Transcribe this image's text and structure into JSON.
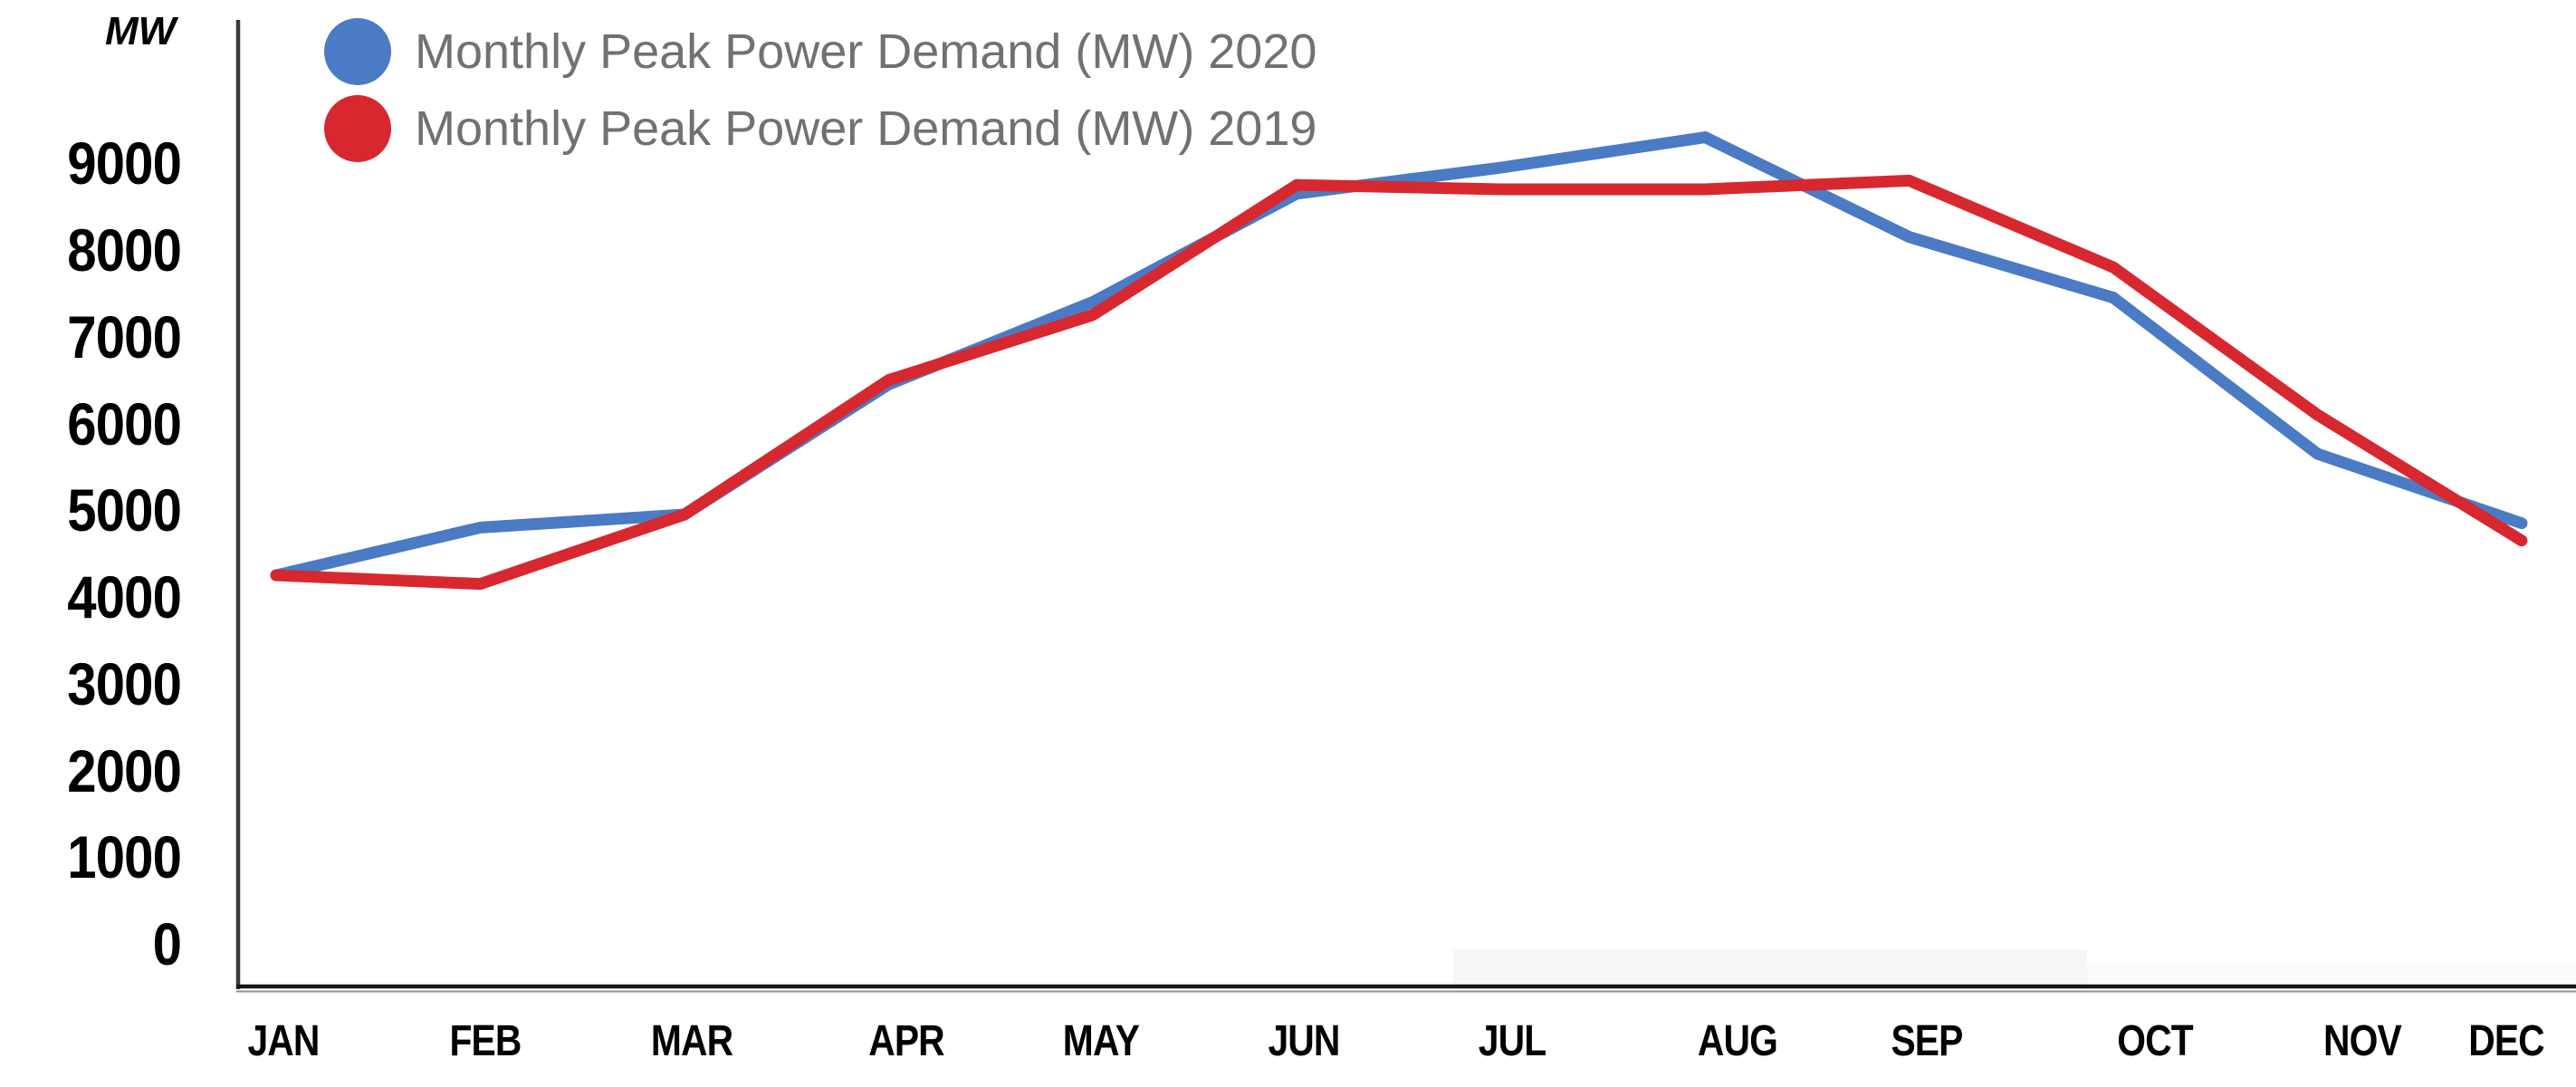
{
  "chart_data": {
    "type": "line",
    "title": "",
    "unit_label": "MW",
    "xlabel": "",
    "ylabel": "MW",
    "categories": [
      "JAN",
      "FEB",
      "MAR",
      "APR",
      "MAY",
      "JUN",
      "JUL",
      "AUG",
      "SEP",
      "OCT",
      "NOV",
      "DEC"
    ],
    "series": [
      {
        "name": "Monthly Peak Power Demand (MW) 2020",
        "color": "#4A7BC4",
        "values": [
          4250,
          4800,
          4950,
          6450,
          7400,
          8650,
          8950,
          9300,
          8150,
          7450,
          5650,
          4850
        ]
      },
      {
        "name": "Monthly Peak Power Demand (MW) 2019",
        "color": "#D7282F",
        "values": [
          4250,
          4150,
          4950,
          6500,
          7250,
          8750,
          8700,
          8700,
          8800,
          7800,
          6100,
          4650
        ]
      }
    ],
    "yticks": [
      0,
      1000,
      2000,
      3000,
      4000,
      5000,
      6000,
      7000,
      8000,
      9000
    ],
    "ylim": [
      0,
      10500
    ],
    "grid": false,
    "legend_position": "top-left",
    "legend_text_color": "#717171",
    "axis_color": "#161616"
  }
}
